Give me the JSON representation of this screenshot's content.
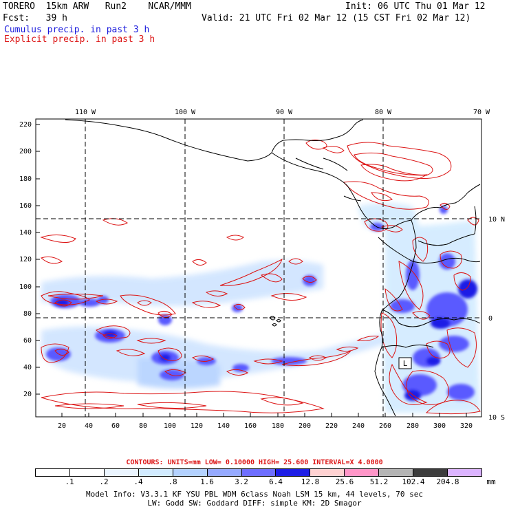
{
  "header": {
    "line1_left": "TORERO  15km ARW   Run2    NCAR/MMM",
    "line1_right": "Init: 06 UTC Thu 01 Mar 12",
    "line2_left": "Fcst:   39 h",
    "line2_right": "Valid: 21 UTC Fri 02 Mar 12 (15 CST Fri 02 Mar 12)",
    "field_cumulus": "Cumulus precip. in past 3 h",
    "field_explicit": "Explicit precip. in past 3 h"
  },
  "map": {
    "top_lon_labels": [
      "110 W",
      "100 W",
      "90 W",
      "80 W",
      "70 W"
    ],
    "right_lat_labels": [
      "10 N",
      "0",
      "10 S"
    ],
    "left_y_labels": [
      "220",
      "200",
      "180",
      "160",
      "140",
      "120",
      "100",
      "80",
      "60",
      "40",
      "20"
    ],
    "bottom_x_labels": [
      "20",
      "40",
      "60",
      "80",
      "100",
      "120",
      "140",
      "160",
      "180",
      "200",
      "220",
      "240",
      "260",
      "280",
      "300",
      "320"
    ],
    "low_marker": "L",
    "colors": {
      "cumulus": "#1a1adc",
      "explicit": "#dc1414",
      "frame": "#000000"
    }
  },
  "legend": {
    "contours_info": "CONTOURS:  UNITS=mm  LOW= 0.10000      HIGH=  25.600      INTERVAL=X  4.0000",
    "levels": [
      ".1",
      ".2",
      ".4",
      ".8",
      "1.6",
      "3.2",
      "6.4",
      "12.8",
      "25.6",
      "51.2",
      "102.4",
      "204.8"
    ],
    "units": "mm",
    "colors": [
      "#ffffff",
      "#ffffff",
      "#ebf5ff",
      "#d2ebff",
      "#b4d2ff",
      "#96aaff",
      "#6e6eff",
      "#1e1ee6",
      "#ffd2d2",
      "#ff96c8",
      "#b4b4b4",
      "#3c3c3c",
      "#dcb4ff"
    ]
  },
  "footer": {
    "line1": "Model Info: V3.3.1    KF     YSU PBL  WDM 6class  Noah LSM  15 km,   44 levels,   70 sec",
    "line2": "LW: Godd SW: Goddard DIFF: simple KM: 2D Smagor"
  }
}
